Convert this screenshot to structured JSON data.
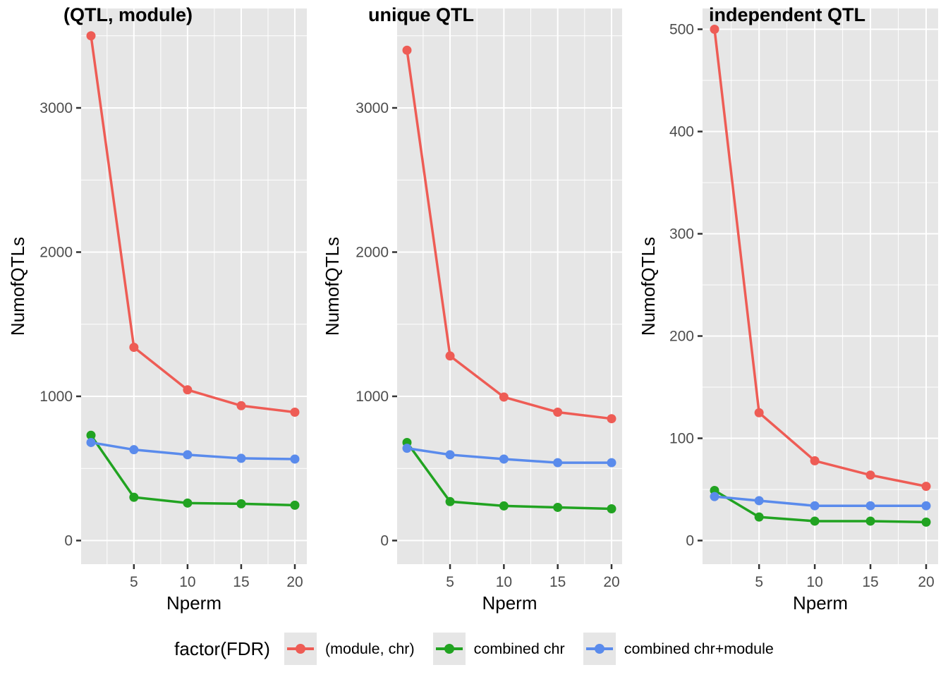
{
  "figure": {
    "y_axis_title": "NumofQTLs",
    "x_axis_title": "Nperm",
    "panel_background": "#E6E6E6",
    "gridline_color": "#FFFFFF",
    "tick_label_color": "#4D4D4D",
    "legend": {
      "title": "factor(FDR)",
      "position": "bottom",
      "items": [
        {
          "label": "(module, chr)",
          "color": "#EE5C55"
        },
        {
          "label": "combined chr",
          "color": "#21A321"
        },
        {
          "label": "combined chr+module",
          "color": "#5A8BEC"
        }
      ]
    }
  },
  "chart_data": [
    {
      "type": "line",
      "title": "(QTL, module)",
      "xlabel": "Nperm",
      "ylabel": "NumofQTLs",
      "x": [
        1,
        5,
        10,
        15,
        20
      ],
      "xticks": [
        5,
        10,
        15,
        20
      ],
      "xticks_minor": [
        2.5,
        7.5,
        12.5,
        17.5
      ],
      "yticks": [
        0,
        1000,
        2000,
        3000
      ],
      "yticks_minor": [
        500,
        1500,
        2500,
        3500
      ],
      "ylim": [
        -160,
        3690
      ],
      "grid": true,
      "series": [
        {
          "name": "(module, chr)",
          "color": "#EE5C55",
          "values": [
            3500,
            1340,
            1045,
            935,
            890
          ]
        },
        {
          "name": "combined chr",
          "color": "#21A321",
          "values": [
            730,
            300,
            260,
            255,
            245
          ]
        },
        {
          "name": "combined chr+module",
          "color": "#5A8BEC",
          "values": [
            680,
            630,
            595,
            570,
            565
          ]
        }
      ]
    },
    {
      "type": "line",
      "title": "unique QTL",
      "xlabel": "Nperm",
      "ylabel": "NumofQTLs",
      "x": [
        1,
        5,
        10,
        15,
        20
      ],
      "xticks": [
        5,
        10,
        15,
        20
      ],
      "xticks_minor": [
        2.5,
        7.5,
        12.5,
        17.5
      ],
      "yticks": [
        0,
        1000,
        2000,
        3000
      ],
      "yticks_minor": [
        500,
        1500,
        2500,
        3500
      ],
      "ylim": [
        -160,
        3690
      ],
      "grid": true,
      "series": [
        {
          "name": "(module, chr)",
          "color": "#EE5C55",
          "values": [
            3400,
            1280,
            995,
            890,
            845
          ]
        },
        {
          "name": "combined chr",
          "color": "#21A321",
          "values": [
            680,
            270,
            240,
            230,
            220
          ]
        },
        {
          "name": "combined chr+module",
          "color": "#5A8BEC",
          "values": [
            640,
            595,
            565,
            540,
            540
          ]
        }
      ]
    },
    {
      "type": "line",
      "title": "independent QTL",
      "xlabel": "Nperm",
      "ylabel": "NumofQTLs",
      "x": [
        1,
        5,
        10,
        15,
        20
      ],
      "xticks": [
        5,
        10,
        15,
        20
      ],
      "xticks_minor": [
        2.5,
        7.5,
        12.5,
        17.5
      ],
      "yticks": [
        0,
        100,
        200,
        300,
        400,
        500
      ],
      "yticks_minor": [
        50,
        150,
        250,
        350,
        450
      ],
      "ylim": [
        -23,
        520
      ],
      "grid": true,
      "series": [
        {
          "name": "(module, chr)",
          "color": "#EE5C55",
          "values": [
            500,
            125,
            78,
            64,
            53
          ]
        },
        {
          "name": "combined chr",
          "color": "#21A321",
          "values": [
            49,
            23,
            19,
            19,
            18
          ]
        },
        {
          "name": "combined chr+module",
          "color": "#5A8BEC",
          "values": [
            43,
            39,
            34,
            34,
            34
          ]
        }
      ]
    }
  ]
}
